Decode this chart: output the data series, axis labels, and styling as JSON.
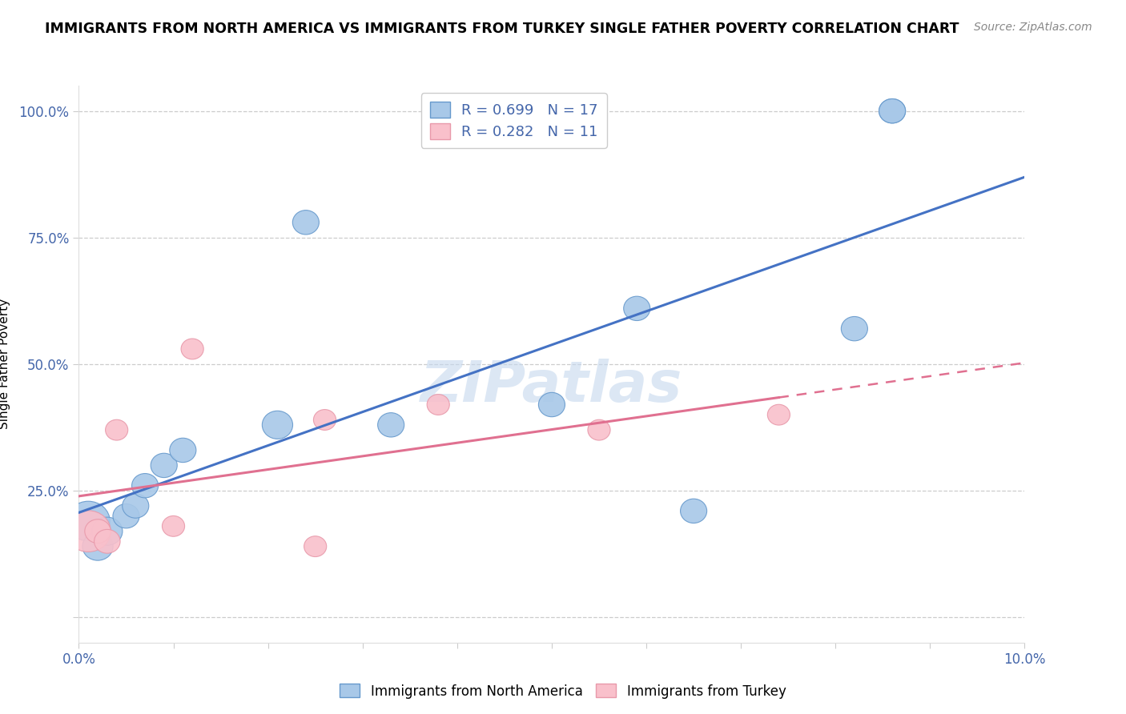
{
  "title": "IMMIGRANTS FROM NORTH AMERICA VS IMMIGRANTS FROM TURKEY SINGLE FATHER POVERTY CORRELATION CHART",
  "source": "Source: ZipAtlas.com",
  "xlabel_blue": "Immigrants from North America",
  "xlabel_pink": "Immigrants from Turkey",
  "ylabel": "Single Father Poverty",
  "watermark": "ZIPatlas",
  "blue_R": 0.699,
  "blue_N": 17,
  "pink_R": 0.282,
  "pink_N": 11,
  "xlim": [
    0.0,
    0.1
  ],
  "ylim": [
    -0.05,
    1.05
  ],
  "blue_points_x": [
    0.001,
    0.002,
    0.003,
    0.005,
    0.006,
    0.007,
    0.009,
    0.011,
    0.021,
    0.024,
    0.033,
    0.05,
    0.059,
    0.065,
    0.082,
    0.086,
    0.086
  ],
  "blue_points_y": [
    0.19,
    0.14,
    0.17,
    0.2,
    0.22,
    0.26,
    0.3,
    0.33,
    0.38,
    0.78,
    0.38,
    0.42,
    0.61,
    0.21,
    0.57,
    1.0,
    1.0
  ],
  "pink_points_x": [
    0.001,
    0.002,
    0.003,
    0.004,
    0.01,
    0.012,
    0.025,
    0.026,
    0.038,
    0.055,
    0.074
  ],
  "pink_points_y": [
    0.17,
    0.17,
    0.15,
    0.37,
    0.18,
    0.53,
    0.14,
    0.39,
    0.42,
    0.37,
    0.4
  ],
  "blue_sizes": [
    400,
    200,
    200,
    150,
    150,
    150,
    150,
    150,
    200,
    150,
    150,
    150,
    150,
    150,
    150,
    150,
    150
  ],
  "pink_sizes": [
    600,
    200,
    200,
    150,
    150,
    150,
    150,
    150,
    150,
    150,
    150
  ],
  "blue_color": "#a8c8e8",
  "pink_color": "#f9c0cb",
  "blue_edge_color": "#6699cc",
  "pink_edge_color": "#e899aa",
  "blue_line_color": "#4472c4",
  "pink_line_color": "#e07090",
  "title_color": "#111111",
  "axis_color": "#4466aa",
  "grid_color": "#cccccc",
  "watermark_color": "#c5d8ee",
  "source_color": "#888888"
}
